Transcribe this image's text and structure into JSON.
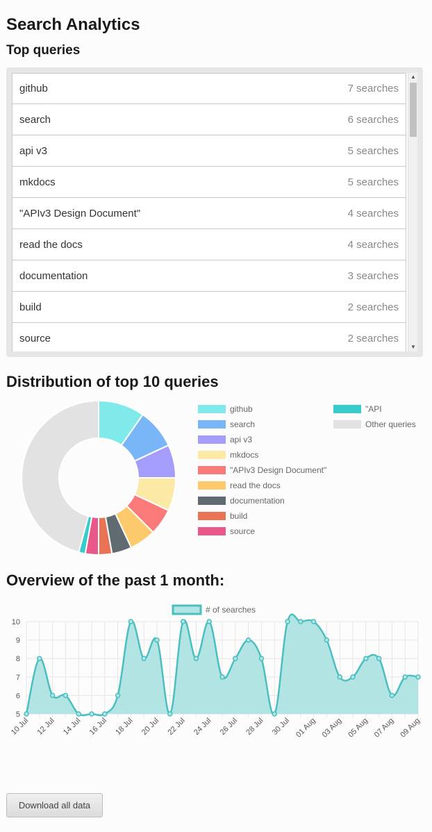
{
  "page_title": "Search Analytics",
  "top_queries": {
    "heading": "Top queries",
    "rows": [
      {
        "query": "github",
        "count": "7 searches"
      },
      {
        "query": "search",
        "count": "6 searches"
      },
      {
        "query": "api v3",
        "count": "5 searches"
      },
      {
        "query": "mkdocs",
        "count": "5 searches"
      },
      {
        "query": "\"APIv3 Design Document\"",
        "count": "4 searches"
      },
      {
        "query": "read the docs",
        "count": "4 searches"
      },
      {
        "query": "documentation",
        "count": "3 searches"
      },
      {
        "query": "build",
        "count": "2 searches"
      },
      {
        "query": "source",
        "count": "2 searches"
      }
    ]
  },
  "distribution": {
    "heading": "Distribution of top 10 queries"
  },
  "overview": {
    "heading": "Overview of the past 1 month:"
  },
  "download_button": "Download all data",
  "chart_data": [
    {
      "type": "pie",
      "title": "Distribution of top 10 queries",
      "legend_position": "right",
      "labels": [
        "github",
        "search",
        "api v3",
        "mkdocs",
        "\"APIv3 Design Document\"",
        "read the docs",
        "documentation",
        "build",
        "source",
        "\"API",
        "Other queries"
      ],
      "values": [
        7,
        6,
        5,
        5,
        4,
        4,
        3,
        2,
        2,
        1,
        33
      ],
      "colors": [
        "#80eaea",
        "#78b6f7",
        "#a49dfb",
        "#fde9a6",
        "#f97a79",
        "#fdc96d",
        "#5f6b71",
        "#e87355",
        "#e9588a",
        "#36cccc",
        "#e2e2e2"
      ]
    },
    {
      "type": "area",
      "title": "",
      "legend_position": "top",
      "x": [
        "10 Jul",
        "11 Jul",
        "12 Jul",
        "13 Jul",
        "14 Jul",
        "15 Jul",
        "16 Jul",
        "17 Jul",
        "18 Jul",
        "19 Jul",
        "20 Jul",
        "21 Jul",
        "22 Jul",
        "23 Jul",
        "24 Jul",
        "25 Jul",
        "26 Jul",
        "27 Jul",
        "28 Jul",
        "29 Jul",
        "30 Jul",
        "31 Jul",
        "01 Aug",
        "02 Aug",
        "03 Aug",
        "04 Aug",
        "05 Aug",
        "06 Aug",
        "07 Aug",
        "08 Aug",
        "09 Aug"
      ],
      "x_tick_labels": [
        "10 Jul",
        "12 Jul",
        "14 Jul",
        "16 Jul",
        "18 Jul",
        "20 Jul",
        "22 Jul",
        "24 Jul",
        "26 Jul",
        "28 Jul",
        "30 Jul",
        "01 Aug",
        "03 Aug",
        "05 Aug",
        "07 Aug",
        "09 Aug"
      ],
      "series": [
        {
          "name": "# of searches",
          "values": [
            5,
            8,
            6,
            6,
            5,
            5,
            5,
            6,
            10,
            8,
            9,
            5,
            10,
            8,
            10,
            7,
            8,
            9,
            8,
            5,
            10,
            10,
            10,
            9,
            7,
            7,
            8,
            8,
            6,
            7,
            7
          ]
        }
      ],
      "ylim": [
        5,
        10
      ],
      "y_ticks": [
        "5",
        "6",
        "7",
        "8",
        "9",
        "10"
      ],
      "grid": true,
      "colors": {
        "line": "#4bbfbf",
        "fill": "#b3e4e4"
      }
    }
  ]
}
